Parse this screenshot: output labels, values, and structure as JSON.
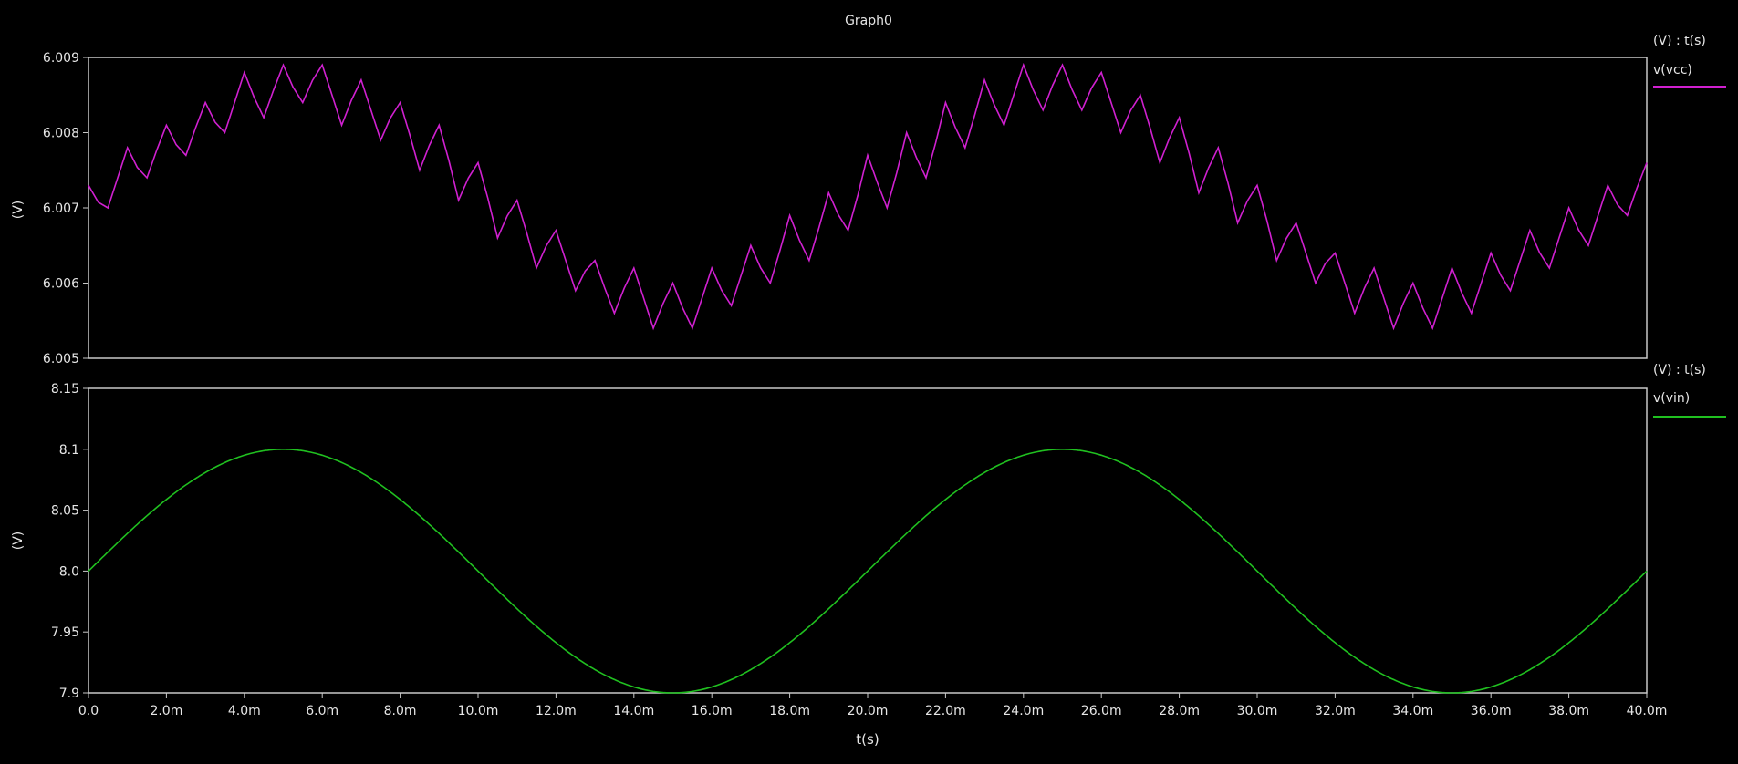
{
  "window_title": "Graph0",
  "x_axis": {
    "label": "t(s)",
    "ticks": [
      "0.0",
      "2.0m",
      "4.0m",
      "6.0m",
      "8.0m",
      "10.0m",
      "12.0m",
      "14.0m",
      "16.0m",
      "18.0m",
      "20.0m",
      "22.0m",
      "24.0m",
      "26.0m",
      "28.0m",
      "30.0m",
      "32.0m",
      "34.0m",
      "36.0m",
      "38.0m",
      "40.0m"
    ]
  },
  "colors": {
    "background": "#000000",
    "frame": "#c8c8c8",
    "text": "#e6e6e6",
    "vcc": "#d020d0",
    "vin": "#20c020"
  },
  "chart_data": [
    {
      "type": "line",
      "unit_header": "(V) : t(s)",
      "ylabel": "(V)",
      "xlabel": "t(s)",
      "xlim": [
        0,
        0.04
      ],
      "ylim": [
        6.005,
        6.009
      ],
      "y_ticks": [
        "6.009",
        "6.008",
        "6.007",
        "6.006",
        "6.005"
      ],
      "y_tick_values": [
        6.009,
        6.008,
        6.007,
        6.006,
        6.005
      ],
      "series": [
        {
          "name": "v(vcc)",
          "color": "#d020d0",
          "x": [
            0,
            0.0005,
            0.001,
            0.0015,
            0.002,
            0.0025,
            0.003,
            0.0035,
            0.004,
            0.0045,
            0.005,
            0.0055,
            0.006,
            0.0065,
            0.007,
            0.0075,
            0.008,
            0.0085,
            0.009,
            0.0095,
            0.01,
            0.0105,
            0.011,
            0.0115,
            0.012,
            0.0125,
            0.013,
            0.0135,
            0.014,
            0.0145,
            0.015,
            0.0155,
            0.016,
            0.0165,
            0.017,
            0.0175,
            0.018,
            0.0185,
            0.019,
            0.0195,
            0.02,
            0.0205,
            0.021,
            0.0215,
            0.022,
            0.0225,
            0.023,
            0.0235,
            0.024,
            0.0245,
            0.025,
            0.0255,
            0.026,
            0.0265,
            0.027,
            0.0275,
            0.028,
            0.0285,
            0.029,
            0.0295,
            0.03,
            0.0305,
            0.031,
            0.0315,
            0.032,
            0.0325,
            0.033,
            0.0335,
            0.034,
            0.0345,
            0.035,
            0.0355,
            0.036,
            0.0365,
            0.037,
            0.0375,
            0.038,
            0.0385,
            0.039,
            0.0395,
            0.04
          ],
          "y": [
            6.0073,
            6.007,
            6.0078,
            6.0074,
            6.0081,
            6.0077,
            6.0084,
            6.008,
            6.0088,
            6.0082,
            6.0089,
            6.0084,
            6.0089,
            6.0081,
            6.0087,
            6.0079,
            6.0084,
            6.0075,
            6.0081,
            6.0071,
            6.0076,
            6.0066,
            6.0071,
            6.0062,
            6.0067,
            6.0059,
            6.0063,
            6.0056,
            6.0062,
            6.0054,
            6.006,
            6.0054,
            6.0062,
            6.0057,
            6.0065,
            6.006,
            6.0069,
            6.0063,
            6.0072,
            6.0067,
            6.0077,
            6.007,
            6.008,
            6.0074,
            6.0084,
            6.0078,
            6.0087,
            6.0081,
            6.0089,
            6.0083,
            6.0089,
            6.0083,
            6.0088,
            6.008,
            6.0085,
            6.0076,
            6.0082,
            6.0072,
            6.0078,
            6.0068,
            6.0073,
            6.0063,
            6.0068,
            6.006,
            6.0064,
            6.0056,
            6.0062,
            6.0054,
            6.006,
            6.0054,
            6.0062,
            6.0056,
            6.0064,
            6.0059,
            6.0067,
            6.0062,
            6.007,
            6.0065,
            6.0073,
            6.0069,
            6.0076
          ]
        }
      ]
    },
    {
      "type": "line",
      "unit_header": "(V) : t(s)",
      "ylabel": "(V)",
      "xlabel": "t(s)",
      "xlim": [
        0,
        0.04
      ],
      "ylim": [
        7.9,
        8.15
      ],
      "y_ticks": [
        "8.15",
        "8.1",
        "8.05",
        "8.0",
        "7.95",
        "7.9"
      ],
      "y_tick_values": [
        8.15,
        8.1,
        8.05,
        8.0,
        7.95,
        7.9
      ],
      "series": [
        {
          "name": "v(vin)",
          "color": "#20c020",
          "function": "8.0 + 0.1*sin(2*pi*50*t)"
        }
      ]
    }
  ]
}
